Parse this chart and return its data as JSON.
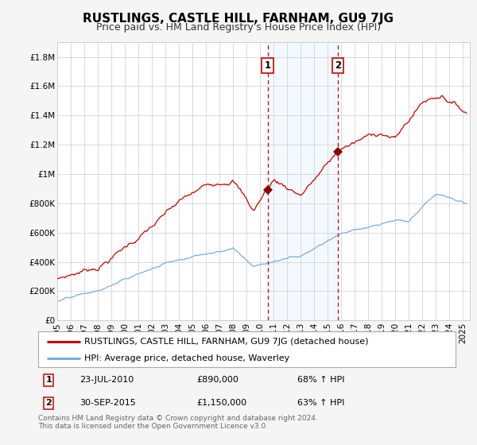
{
  "title": "RUSTLINGS, CASTLE HILL, FARNHAM, GU9 7JG",
  "subtitle": "Price paid vs. HM Land Registry's House Price Index (HPI)",
  "ylabel_ticks": [
    "£0",
    "£200K",
    "£400K",
    "£600K",
    "£800K",
    "£1M",
    "£1.2M",
    "£1.4M",
    "£1.6M",
    "£1.8M"
  ],
  "ytick_values": [
    0,
    200000,
    400000,
    600000,
    800000,
    1000000,
    1200000,
    1400000,
    1600000,
    1800000
  ],
  "ylim": [
    0,
    1900000
  ],
  "xlim_start": 1995.0,
  "xlim_end": 2025.5,
  "x_ticks": [
    1995,
    1996,
    1997,
    1998,
    1999,
    2000,
    2001,
    2002,
    2003,
    2004,
    2005,
    2006,
    2007,
    2008,
    2009,
    2010,
    2011,
    2012,
    2013,
    2014,
    2015,
    2016,
    2017,
    2018,
    2019,
    2020,
    2021,
    2022,
    2023,
    2024,
    2025
  ],
  "sale1_x": 2010.556,
  "sale1_y": 890000,
  "sale2_x": 2015.747,
  "sale2_y": 1150000,
  "sale1_date": "23-JUL-2010",
  "sale1_price": "£890,000",
  "sale1_hpi": "68% ↑ HPI",
  "sale2_date": "30-SEP-2015",
  "sale2_price": "£1,150,000",
  "sale2_hpi": "63% ↑ HPI",
  "line1_color": "#cc0000",
  "line2_color": "#7aadda",
  "shade_color": "#ddeeff",
  "dot_color": "#8b0000",
  "vline_color": "#cc0000",
  "grid_color": "#cccccc",
  "bg_color": "#f5f5f5",
  "plot_bg_color": "#ffffff",
  "legend_label1": "RUSTLINGS, CASTLE HILL, FARNHAM, GU9 7JG (detached house)",
  "legend_label2": "HPI: Average price, detached house, Waverley",
  "footer1": "Contains HM Land Registry data © Crown copyright and database right 2024.",
  "footer2": "This data is licensed under the Open Government Licence v3.0.",
  "title_fontsize": 11,
  "subtitle_fontsize": 9,
  "tick_fontsize": 7.5,
  "legend_fontsize": 8,
  "table_fontsize": 8
}
